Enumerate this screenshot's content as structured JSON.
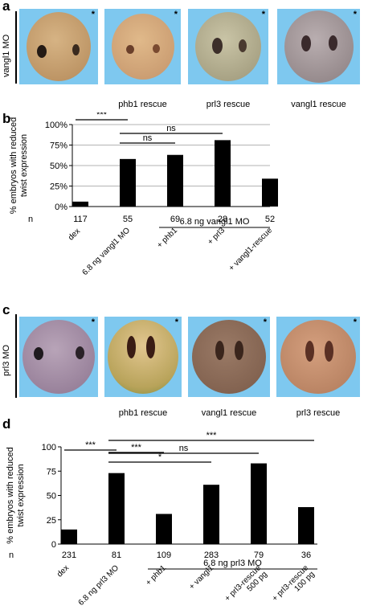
{
  "panel_a": {
    "letter": "a",
    "row_label": "vangl1 MO",
    "asterisk": "*",
    "captions": [
      "",
      "phb1 rescue",
      "prl3 rescue",
      "vangl1 rescue"
    ]
  },
  "panel_c": {
    "letter": "c",
    "row_label": "prl3 MO",
    "asterisk": "*",
    "captions": [
      "",
      "phb1 rescue",
      "vangl1 rescue",
      "prl3 rescue"
    ]
  },
  "chart_data": [
    {
      "panel": "b",
      "type": "bar",
      "ylabel": "% embryos with reduced twist expression",
      "ylabel_lines": [
        "% embryos with reduced",
        "twist expression"
      ],
      "ylim": [
        0,
        100
      ],
      "yticks": [
        "0%",
        "25%",
        "50%",
        "75%",
        "100%"
      ],
      "grid": true,
      "categories": [
        "dex",
        "6.8 ng vangl1 MO",
        "+ phb1",
        "+ prl3",
        "+ vangl1-rescue"
      ],
      "values": [
        6,
        58,
        63,
        81,
        34
      ],
      "n_label": "n",
      "n_values": [
        "117",
        "55",
        "69",
        "28",
        "52"
      ],
      "group_label": "6.8 ng vangl1 MO",
      "significance": [
        {
          "from": 0,
          "to": 1,
          "label": "***"
        },
        {
          "from": 1,
          "to": 2,
          "label": "ns"
        },
        {
          "from": 1,
          "to": 3,
          "label": "ns"
        },
        {
          "from": 1,
          "to": 4,
          "label": "**"
        }
      ]
    },
    {
      "panel": "d",
      "type": "bar",
      "ylabel": "% embryos with reduced twist expression",
      "ylabel_lines": [
        "% embryos with reduced",
        "twist expression"
      ],
      "ylim": [
        0,
        100
      ],
      "yticks": [
        "0",
        "25",
        "50",
        "75",
        "100"
      ],
      "grid": false,
      "categories": [
        "dex",
        "6.8 ng prl3 MO",
        "+ phb1",
        "+ vangl1",
        "+ prl3-rescue 500 pg",
        "+ prl3-rescue 100 pg"
      ],
      "values": [
        15,
        73,
        31,
        61,
        83,
        38
      ],
      "n_label": "n",
      "n_values": [
        "231",
        "81",
        "109",
        "283",
        "79",
        "36"
      ],
      "group_label": "6.8 ng prl3 MO",
      "significance": [
        {
          "from": 0,
          "to": 1,
          "label": "***"
        },
        {
          "from": 1,
          "to": 2,
          "label": "***"
        },
        {
          "from": 1,
          "to": 3,
          "label": "*"
        },
        {
          "from": 1,
          "to": 4,
          "label": "ns"
        },
        {
          "from": 1,
          "to": 5,
          "label": "***"
        }
      ]
    }
  ],
  "colors": {
    "tile_bg": "#7ec8ef",
    "bar": "#000000",
    "grid": "#9a9a9a"
  }
}
